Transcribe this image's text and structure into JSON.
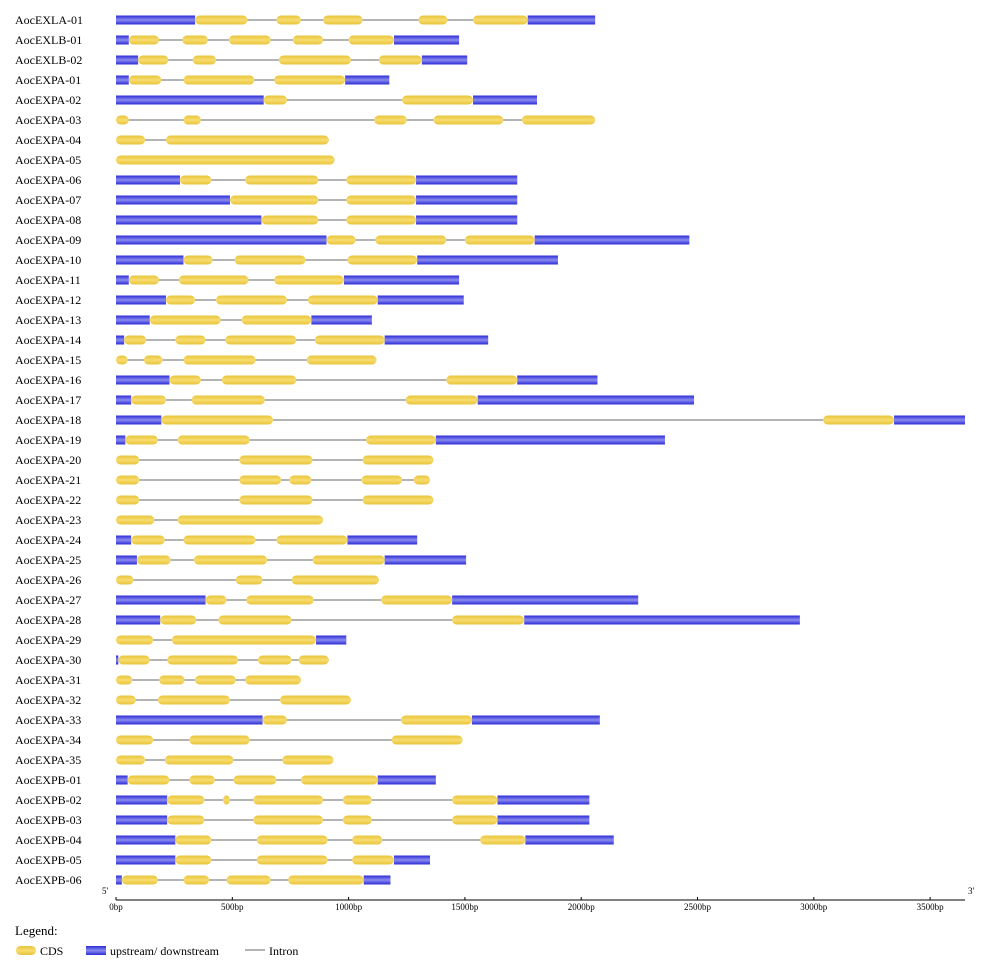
{
  "chart_data": {
    "type": "gene-structure",
    "title": "",
    "axis": {
      "start_label": "5'",
      "end_label": "3'",
      "min": 0,
      "max": 3650,
      "ticks": [
        {
          "value": 0,
          "label": "0bp"
        },
        {
          "value": 500,
          "label": "500bp"
        },
        {
          "value": 1000,
          "label": "1000bp"
        },
        {
          "value": 1500,
          "label": "1500bp"
        },
        {
          "value": 2000,
          "label": "2000bp"
        },
        {
          "value": 2500,
          "label": "2500bp"
        },
        {
          "value": 3000,
          "label": "3000bp"
        },
        {
          "value": 3500,
          "label": "3500bp"
        }
      ]
    },
    "legend": {
      "title": "Legend:",
      "items": [
        {
          "key": "cds",
          "label": "CDS"
        },
        {
          "key": "utr",
          "label": "upstream/ downstream"
        },
        {
          "key": "intron",
          "label": "Intron"
        }
      ]
    },
    "colors": {
      "cds_fill": "#f7dc6f",
      "cds_edge": "#e8c43a",
      "utr_dark": "#2b2bd6",
      "utr_light": "#8a8af0",
      "intron": "#888888",
      "text": "#000000"
    },
    "genes": [
      {
        "name": "AocEXLA-01",
        "length": 2060,
        "cds": [
          [
            340,
            565
          ],
          [
            690,
            795
          ],
          [
            890,
            1060
          ],
          [
            1300,
            1425
          ],
          [
            1535,
            1770
          ]
        ],
        "utr": [
          [
            0,
            340
          ],
          [
            1770,
            2060
          ]
        ]
      },
      {
        "name": "AocEXLB-01",
        "length": 1475,
        "cds": [
          [
            55,
            185
          ],
          [
            285,
            395
          ],
          [
            485,
            665
          ],
          [
            760,
            890
          ],
          [
            1000,
            1195
          ]
        ],
        "utr": [
          [
            0,
            55
          ],
          [
            1195,
            1475
          ]
        ]
      },
      {
        "name": "AocEXLB-02",
        "length": 1510,
        "cds": [
          [
            95,
            225
          ],
          [
            330,
            430
          ],
          [
            700,
            1010
          ],
          [
            1130,
            1315
          ]
        ],
        "utr": [
          [
            0,
            95
          ],
          [
            1315,
            1510
          ]
        ]
      },
      {
        "name": "AocEXPA-01",
        "length": 1175,
        "cds": [
          [
            55,
            195
          ],
          [
            290,
            595
          ],
          [
            680,
            985
          ]
        ],
        "utr": [
          [
            0,
            55
          ],
          [
            985,
            1175
          ]
        ]
      },
      {
        "name": "AocEXPA-02",
        "length": 1810,
        "cds": [
          [
            635,
            735
          ],
          [
            1230,
            1535
          ]
        ],
        "utr": [
          [
            0,
            635
          ],
          [
            1535,
            1810
          ]
        ]
      },
      {
        "name": "AocEXPA-03",
        "length": 2060,
        "cds": [
          [
            0,
            55
          ],
          [
            290,
            365
          ],
          [
            1110,
            1250
          ],
          [
            1365,
            1665
          ],
          [
            1745,
            2060
          ]
        ],
        "utr": []
      },
      {
        "name": "AocEXPA-04",
        "length": 915,
        "cds": [
          [
            0,
            125
          ],
          [
            215,
            915
          ]
        ],
        "utr": []
      },
      {
        "name": "AocEXPA-05",
        "length": 940,
        "cds": [
          [
            0,
            940
          ]
        ],
        "utr": []
      },
      {
        "name": "AocEXPA-06",
        "length": 1725,
        "cds": [
          [
            275,
            410
          ],
          [
            555,
            870
          ],
          [
            990,
            1290
          ]
        ],
        "utr": [
          [
            0,
            275
          ],
          [
            1290,
            1725
          ]
        ]
      },
      {
        "name": "AocEXPA-07",
        "length": 1725,
        "cds": [
          [
            490,
            870
          ],
          [
            990,
            1290
          ]
        ],
        "utr": [
          [
            0,
            490
          ],
          [
            1290,
            1725
          ]
        ]
      },
      {
        "name": "AocEXPA-08",
        "length": 1725,
        "cds": [
          [
            625,
            870
          ],
          [
            990,
            1290
          ]
        ],
        "utr": [
          [
            0,
            625
          ],
          [
            1290,
            1725
          ]
        ]
      },
      {
        "name": "AocEXPA-09",
        "length": 2465,
        "cds": [
          [
            905,
            1030
          ],
          [
            1115,
            1420
          ],
          [
            1500,
            1800
          ]
        ],
        "utr": [
          [
            0,
            905
          ],
          [
            1800,
            2465
          ]
        ]
      },
      {
        "name": "AocEXPA-10",
        "length": 1900,
        "cds": [
          [
            290,
            415
          ],
          [
            510,
            815
          ],
          [
            995,
            1295
          ]
        ],
        "utr": [
          [
            0,
            290
          ],
          [
            1295,
            1900
          ]
        ]
      },
      {
        "name": "AocEXPA-11",
        "length": 1475,
        "cds": [
          [
            55,
            185
          ],
          [
            270,
            570
          ],
          [
            680,
            980
          ]
        ],
        "utr": [
          [
            0,
            55
          ],
          [
            980,
            1475
          ]
        ]
      },
      {
        "name": "AocEXPA-12",
        "length": 1495,
        "cds": [
          [
            215,
            340
          ],
          [
            430,
            735
          ],
          [
            825,
            1125
          ]
        ],
        "utr": [
          [
            0,
            215
          ],
          [
            1125,
            1495
          ]
        ]
      },
      {
        "name": "AocEXPA-13",
        "length": 1100,
        "cds": [
          [
            145,
            450
          ],
          [
            540,
            840
          ]
        ],
        "utr": [
          [
            0,
            145
          ],
          [
            840,
            1100
          ]
        ]
      },
      {
        "name": "AocEXPA-14",
        "length": 1600,
        "cds": [
          [
            35,
            130
          ],
          [
            255,
            385
          ],
          [
            470,
            775
          ],
          [
            855,
            1155
          ]
        ],
        "utr": [
          [
            0,
            35
          ],
          [
            1155,
            1600
          ]
        ]
      },
      {
        "name": "AocEXPA-15",
        "length": 1120,
        "cds": [
          [
            0,
            50
          ],
          [
            120,
            200
          ],
          [
            290,
            600
          ],
          [
            820,
            1120
          ]
        ],
        "utr": []
      },
      {
        "name": "AocEXPA-16",
        "length": 2070,
        "cds": [
          [
            230,
            365
          ],
          [
            455,
            775
          ],
          [
            1420,
            1725
          ]
        ],
        "utr": [
          [
            0,
            230
          ],
          [
            1725,
            2070
          ]
        ]
      },
      {
        "name": "AocEXPA-17",
        "length": 2485,
        "cds": [
          [
            65,
            215
          ],
          [
            325,
            640
          ],
          [
            1245,
            1555
          ]
        ],
        "utr": [
          [
            0,
            65
          ],
          [
            1555,
            2485
          ]
        ]
      },
      {
        "name": "AocEXPA-18",
        "length": 3650,
        "cds": [
          [
            195,
            675
          ],
          [
            3040,
            3345
          ]
        ],
        "utr": [
          [
            0,
            195
          ],
          [
            3345,
            3650
          ]
        ]
      },
      {
        "name": "AocEXPA-19",
        "length": 2360,
        "cds": [
          [
            40,
            180
          ],
          [
            265,
            575
          ],
          [
            1075,
            1375
          ]
        ],
        "utr": [
          [
            0,
            40
          ],
          [
            1375,
            2360
          ]
        ]
      },
      {
        "name": "AocEXPA-20",
        "length": 1365,
        "cds": [
          [
            0,
            100
          ],
          [
            530,
            845
          ],
          [
            1060,
            1365
          ]
        ],
        "utr": []
      },
      {
        "name": "AocEXPA-21",
        "length": 1350,
        "cds": [
          [
            0,
            100
          ],
          [
            530,
            710
          ],
          [
            745,
            840
          ],
          [
            1055,
            1230
          ],
          [
            1280,
            1350
          ]
        ],
        "utr": []
      },
      {
        "name": "AocEXPA-22",
        "length": 1365,
        "cds": [
          [
            0,
            100
          ],
          [
            530,
            845
          ],
          [
            1060,
            1365
          ]
        ],
        "utr": []
      },
      {
        "name": "AocEXPA-23",
        "length": 890,
        "cds": [
          [
            0,
            165
          ],
          [
            265,
            890
          ]
        ],
        "utr": []
      },
      {
        "name": "AocEXPA-24",
        "length": 1295,
        "cds": [
          [
            65,
            210
          ],
          [
            290,
            600
          ],
          [
            690,
            995
          ]
        ],
        "utr": [
          [
            0,
            65
          ],
          [
            995,
            1295
          ]
        ]
      },
      {
        "name": "AocEXPA-25",
        "length": 1505,
        "cds": [
          [
            90,
            235
          ],
          [
            335,
            650
          ],
          [
            845,
            1155
          ]
        ],
        "utr": [
          [
            0,
            90
          ],
          [
            1155,
            1505
          ]
        ]
      },
      {
        "name": "AocEXPA-26",
        "length": 1130,
        "cds": [
          [
            0,
            75
          ],
          [
            515,
            630
          ],
          [
            755,
            1130
          ]
        ],
        "utr": []
      },
      {
        "name": "AocEXPA-27",
        "length": 2245,
        "cds": [
          [
            385,
            475
          ],
          [
            560,
            850
          ],
          [
            1140,
            1445
          ]
        ],
        "utr": [
          [
            0,
            385
          ],
          [
            1445,
            2245
          ]
        ]
      },
      {
        "name": "AocEXPA-28",
        "length": 2940,
        "cds": [
          [
            190,
            345
          ],
          [
            440,
            755
          ],
          [
            1445,
            1755
          ]
        ],
        "utr": [
          [
            0,
            190
          ],
          [
            1755,
            2940
          ]
        ]
      },
      {
        "name": "AocEXPA-29",
        "length": 990,
        "cds": [
          [
            0,
            160
          ],
          [
            240,
            860
          ]
        ],
        "utr": [
          [
            860,
            990
          ]
        ]
      },
      {
        "name": "AocEXPA-30",
        "length": 915,
        "cds": [
          [
            10,
            145
          ],
          [
            220,
            525
          ],
          [
            610,
            755
          ],
          [
            785,
            915
          ]
        ],
        "utr": [
          [
            0,
            10
          ]
        ]
      },
      {
        "name": "AocEXPA-31",
        "length": 795,
        "cds": [
          [
            0,
            70
          ],
          [
            185,
            295
          ],
          [
            340,
            515
          ],
          [
            555,
            795
          ]
        ],
        "utr": []
      },
      {
        "name": "AocEXPA-32",
        "length": 1010,
        "cds": [
          [
            0,
            85
          ],
          [
            180,
            490
          ],
          [
            705,
            1010
          ]
        ],
        "utr": []
      },
      {
        "name": "AocEXPA-33",
        "length": 2080,
        "cds": [
          [
            630,
            735
          ],
          [
            1225,
            1530
          ]
        ],
        "utr": [
          [
            0,
            630
          ],
          [
            1530,
            2080
          ]
        ]
      },
      {
        "name": "AocEXPA-34",
        "length": 1490,
        "cds": [
          [
            0,
            160
          ],
          [
            315,
            575
          ],
          [
            1185,
            1490
          ]
        ],
        "utr": []
      },
      {
        "name": "AocEXPA-35",
        "length": 935,
        "cds": [
          [
            0,
            125
          ],
          [
            210,
            505
          ],
          [
            715,
            935
          ]
        ],
        "utr": []
      },
      {
        "name": "AocEXPB-01",
        "length": 1375,
        "cds": [
          [
            50,
            230
          ],
          [
            315,
            425
          ],
          [
            505,
            690
          ],
          [
            795,
            1125
          ]
        ],
        "utr": [
          [
            0,
            50
          ],
          [
            1125,
            1375
          ]
        ]
      },
      {
        "name": "AocEXPB-02",
        "length": 2035,
        "cds": [
          [
            220,
            380
          ],
          [
            460,
            490
          ],
          [
            590,
            890
          ],
          [
            975,
            1100
          ],
          [
            1445,
            1640
          ]
        ],
        "utr": [
          [
            0,
            220
          ],
          [
            1640,
            2035
          ]
        ]
      },
      {
        "name": "AocEXPB-03",
        "length": 2035,
        "cds": [
          [
            220,
            380
          ],
          [
            590,
            890
          ],
          [
            975,
            1100
          ],
          [
            1445,
            1640
          ]
        ],
        "utr": [
          [
            0,
            220
          ],
          [
            1640,
            2035
          ]
        ]
      },
      {
        "name": "AocEXPB-04",
        "length": 2140,
        "cds": [
          [
            255,
            410
          ],
          [
            605,
            910
          ],
          [
            1015,
            1145
          ],
          [
            1565,
            1760
          ]
        ],
        "utr": [
          [
            0,
            255
          ],
          [
            1760,
            2140
          ]
        ]
      },
      {
        "name": "AocEXPB-05",
        "length": 1350,
        "cds": [
          [
            255,
            410
          ],
          [
            605,
            910
          ],
          [
            1015,
            1195
          ]
        ],
        "utr": [
          [
            0,
            255
          ],
          [
            1195,
            1350
          ]
        ]
      },
      {
        "name": "AocEXPB-06",
        "length": 1180,
        "cds": [
          [
            25,
            180
          ],
          [
            290,
            400
          ],
          [
            475,
            665
          ],
          [
            740,
            1065
          ]
        ],
        "utr": [
          [
            0,
            25
          ],
          [
            1065,
            1180
          ]
        ]
      }
    ]
  }
}
